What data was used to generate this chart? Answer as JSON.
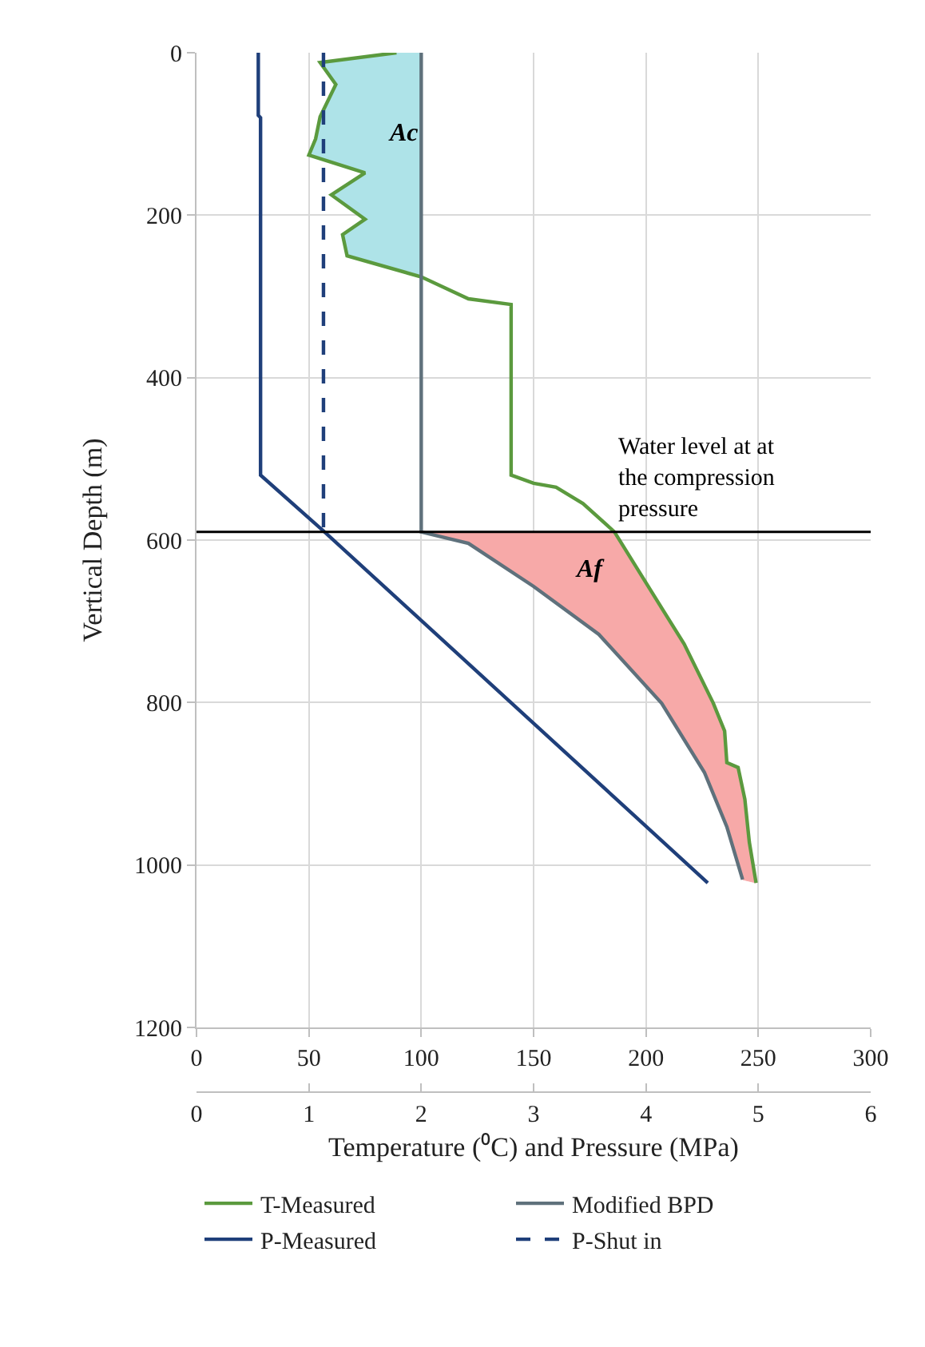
{
  "chart_data": {
    "type": "line",
    "orientation": "horizontal",
    "xlabel": "Temperature (⁰C) and Pressure (MPa)",
    "ylabel": "Vertical Depth (m)",
    "xlim": [
      0,
      300
    ],
    "xticks": [
      0,
      50,
      100,
      150,
      200,
      250,
      300
    ],
    "x2lim": [
      0,
      6
    ],
    "x2ticks": [
      0,
      1,
      2,
      3,
      4,
      5,
      6
    ],
    "ylim": [
      1200,
      0
    ],
    "yticks": [
      0,
      200,
      400,
      600,
      800,
      1000,
      1200
    ],
    "grid": true,
    "legend": "bottom",
    "marker": "none",
    "series": [
      {
        "type": "area",
        "color": "#aee3e8",
        "x": [
          0,
          12,
          39,
          79,
          106,
          126,
          148,
          175,
          205,
          224,
          250,
          276,
          276,
          0
        ],
        "values": [
          89,
          55,
          62,
          55,
          53,
          50,
          75,
          60,
          75,
          65,
          67,
          100,
          100,
          100
        ]
      },
      {
        "type": "area",
        "color": "#f7a9a8",
        "x": [
          590,
          657,
          728,
          801,
          835,
          874,
          880,
          919,
          972,
          1022,
          1018,
          953,
          886,
          801,
          716,
          657,
          604,
          590
        ],
        "values": [
          186,
          201,
          217,
          230,
          235,
          236,
          241,
          244,
          246,
          249,
          243,
          236,
          226,
          207,
          179,
          150,
          121,
          100
        ]
      },
      {
        "name": "T-Measured",
        "color": "#5b9a3e",
        "line_style": "solid",
        "x": [
          0,
          12,
          39,
          79,
          106,
          126,
          148,
          175,
          205,
          224,
          250,
          276,
          303,
          310,
          520,
          530,
          535,
          555,
          590,
          657,
          728,
          801,
          835,
          874,
          880,
          919,
          972,
          1022
        ],
        "values": [
          89,
          55,
          62,
          55,
          53,
          50,
          75,
          60,
          75,
          65,
          67,
          100,
          121,
          140,
          140,
          150,
          160,
          172,
          186,
          201,
          217,
          230,
          235,
          236,
          241,
          244,
          246,
          249
        ]
      },
      {
        "name": "Modified BPD",
        "color": "#5f717c",
        "line_style": "solid",
        "x": [
          0,
          590,
          604,
          657,
          716,
          801,
          886,
          953,
          1018
        ],
        "values": [
          100,
          100,
          121,
          150,
          179,
          207,
          226,
          236,
          243
        ]
      },
      {
        "name": "P-Measured",
        "color": "#1f3f7a",
        "line_style": "solid",
        "axis": "x2",
        "x": [
          0,
          77,
          80,
          520,
          590,
          1022
        ],
        "values": [
          0.55,
          0.55,
          0.57,
          0.57,
          1.14,
          4.55
        ]
      },
      {
        "name": "P-Shut in",
        "color": "#1f3f7a",
        "line_style": "dashed",
        "axis": "x2",
        "x": [
          0,
          590
        ],
        "values": [
          1.13,
          1.13
        ]
      }
    ],
    "ref_lines": [
      {
        "axis": "y",
        "value": 590,
        "label": "Water level at at the compression pressure",
        "color": "#000000"
      }
    ],
    "annotations": [
      "Ac",
      "Af"
    ]
  }
}
